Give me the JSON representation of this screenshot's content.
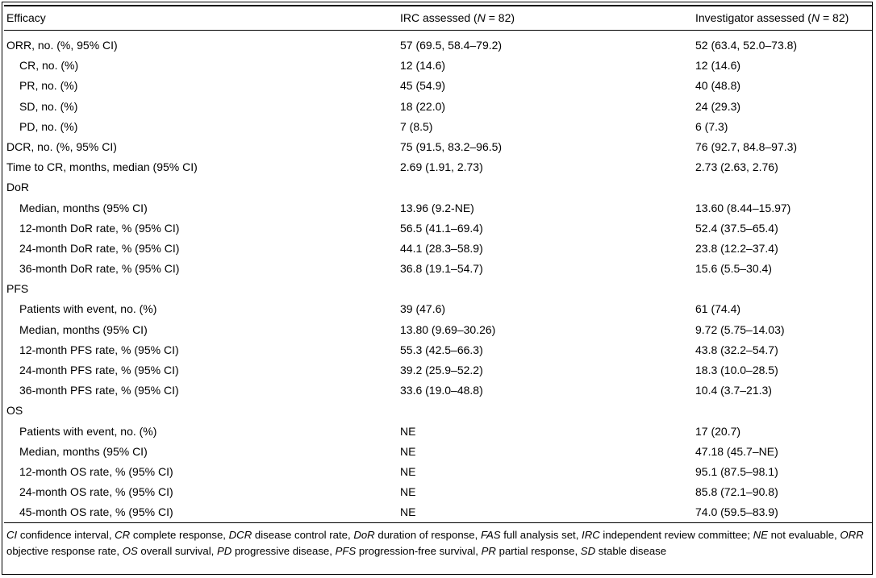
{
  "table": {
    "headers": {
      "col0": "Efficacy",
      "col1_pre": "IRC assessed (",
      "col1_n": "N",
      "col1_post": " = 82)",
      "col2_pre": "Investigator assessed (",
      "col2_n": "N",
      "col2_post": " = 82)"
    },
    "rows": [
      {
        "label": "ORR, no. (%, 95% CI)",
        "indent": false,
        "irc": "57 (69.5, 58.4–79.2)",
        "inv": "52 (63.4, 52.0–73.8)"
      },
      {
        "label": "CR, no. (%)",
        "indent": true,
        "irc": "12 (14.6)",
        "inv": "12 (14.6)"
      },
      {
        "label": "PR, no. (%)",
        "indent": true,
        "irc": "45 (54.9)",
        "inv": "40 (48.8)"
      },
      {
        "label": "SD, no. (%)",
        "indent": true,
        "irc": "18 (22.0)",
        "inv": "24 (29.3)"
      },
      {
        "label": "PD, no. (%)",
        "indent": true,
        "irc": "7 (8.5)",
        "inv": "6 (7.3)"
      },
      {
        "label": "DCR, no. (%, 95% CI)",
        "indent": false,
        "irc": "75 (91.5, 83.2–96.5)",
        "inv": "76 (92.7, 84.8–97.3)"
      },
      {
        "label": "Time to CR, months, median (95% CI)",
        "indent": false,
        "irc": "2.69 (1.91, 2.73)",
        "inv": "2.73 (2.63, 2.76)"
      },
      {
        "label": "DoR",
        "indent": false,
        "irc": "",
        "inv": ""
      },
      {
        "label": "Median, months (95% CI)",
        "indent": true,
        "irc": "13.96 (9.2-NE)",
        "inv": "13.60 (8.44–15.97)"
      },
      {
        "label": "12-month DoR rate, % (95% CI)",
        "indent": true,
        "irc": "56.5 (41.1–69.4)",
        "inv": "52.4 (37.5–65.4)"
      },
      {
        "label": "24-month DoR rate, % (95% CI)",
        "indent": true,
        "irc": "44.1 (28.3–58.9)",
        "inv": "23.8 (12.2–37.4)"
      },
      {
        "label": "36-month DoR rate, % (95% CI)",
        "indent": true,
        "irc": "36.8 (19.1–54.7)",
        "inv": "15.6 (5.5–30.4)"
      },
      {
        "label": "PFS",
        "indent": false,
        "irc": "",
        "inv": ""
      },
      {
        "label": "Patients with event, no. (%)",
        "indent": true,
        "irc": "39 (47.6)",
        "inv": "61 (74.4)"
      },
      {
        "label": "Median, months (95% CI)",
        "indent": true,
        "irc": "13.80 (9.69–30.26)",
        "inv": "9.72 (5.75–14.03)"
      },
      {
        "label": "12-month PFS rate, % (95% CI)",
        "indent": true,
        "irc": "55.3 (42.5–66.3)",
        "inv": "43.8 (32.2–54.7)"
      },
      {
        "label": "24-month PFS rate, % (95% CI)",
        "indent": true,
        "irc": "39.2 (25.9–52.2)",
        "inv": "18.3 (10.0–28.5)"
      },
      {
        "label": "36-month PFS rate, % (95% CI)",
        "indent": true,
        "irc": "33.6 (19.0–48.8)",
        "inv": "10.4 (3.7–21.3)"
      },
      {
        "label": "OS",
        "indent": false,
        "irc": "",
        "inv": ""
      },
      {
        "label": "Patients with event, no. (%)",
        "indent": true,
        "irc": "NE",
        "inv": "17 (20.7)"
      },
      {
        "label": "Median, months (95% CI)",
        "indent": true,
        "irc": "NE",
        "inv": "47.18 (45.7–NE)"
      },
      {
        "label": "12-month OS rate, % (95% CI)",
        "indent": true,
        "irc": "NE",
        "inv": "95.1 (87.5–98.1)"
      },
      {
        "label": "24-month OS rate, % (95% CI)",
        "indent": true,
        "irc": "NE",
        "inv": "85.8 (72.1–90.8)"
      },
      {
        "label": "45-month OS rate, % (95% CI)",
        "indent": true,
        "irc": "NE",
        "inv": "74.0 (59.5–83.9)"
      }
    ]
  },
  "footnote": {
    "entries": [
      {
        "abbr": "CI",
        "text": " confidence interval, "
      },
      {
        "abbr": "CR",
        "text": " complete response, "
      },
      {
        "abbr": "DCR",
        "text": " disease control rate, "
      },
      {
        "abbr": "DoR",
        "text": " duration of response, "
      },
      {
        "abbr": "FAS",
        "text": " full analysis set, "
      },
      {
        "abbr": "IRC",
        "text": " independent review committee; "
      },
      {
        "abbr": "NE",
        "text": " not evaluable, "
      },
      {
        "abbr": "ORR",
        "text": " objective response rate, "
      },
      {
        "abbr": "OS",
        "text": " overall survival, "
      },
      {
        "abbr": "PD",
        "text": " progressive disease, "
      },
      {
        "abbr": "PFS",
        "text": " progression-free survival, "
      },
      {
        "abbr": "PR",
        "text": " partial response, "
      },
      {
        "abbr": "SD",
        "text": " stable disease"
      }
    ]
  }
}
